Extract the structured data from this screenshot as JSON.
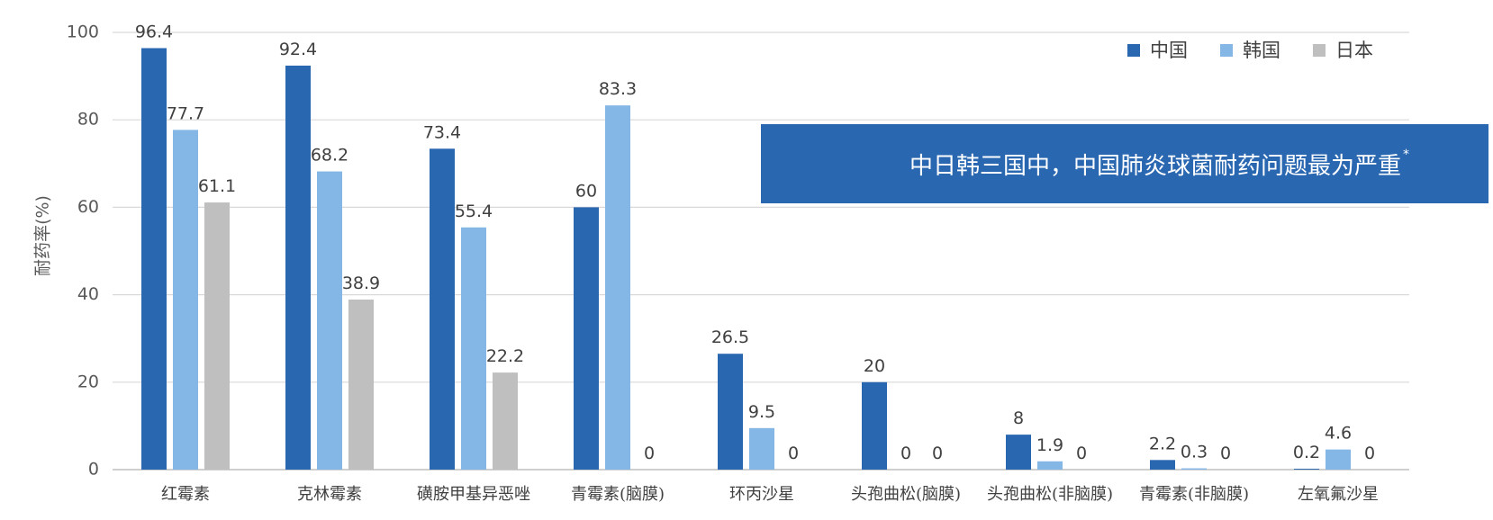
{
  "banner": {
    "text": "中日韩三国中，中国肺炎球菌耐药问题最为严重",
    "marker": "*"
  },
  "chart_data": {
    "type": "bar",
    "title": "",
    "xlabel": "",
    "ylabel": "耐药率(%)",
    "ylim": [
      0,
      100
    ],
    "yticks": [
      0,
      20,
      40,
      60,
      80,
      100
    ],
    "grid": true,
    "legend_position": "top-right",
    "categories": [
      "红霉素",
      "克林霉素",
      "磺胺甲基异恶唑",
      "青霉素(脑膜)",
      "环丙沙星",
      "头孢曲松(脑膜)",
      "头孢曲松(非脑膜)",
      "青霉素(非脑膜)",
      "左氧氟沙星"
    ],
    "series": [
      {
        "name": "中国",
        "color": "#2A67B1",
        "values": [
          96.4,
          92.4,
          73.4,
          60,
          26.5,
          20,
          8,
          2.2,
          0.2
        ]
      },
      {
        "name": "韩国",
        "color": "#84B7E5",
        "values": [
          77.7,
          68.2,
          55.4,
          83.3,
          9.5,
          0,
          1.9,
          0.3,
          4.6
        ]
      },
      {
        "name": "日本",
        "color": "#BFBFBF",
        "values": [
          61.1,
          38.9,
          22.2,
          0,
          0,
          0,
          0,
          0,
          0
        ]
      }
    ],
    "labels": [
      [
        "96.4",
        "92.4",
        "73.4",
        "60",
        "26.5",
        "20",
        "8",
        "2.2",
        "0.2"
      ],
      [
        "77.7",
        "68.2",
        "55.4",
        "83.3",
        "9.5",
        "0",
        "1.9",
        "0.3",
        "4.6"
      ],
      [
        "61.1",
        "38.9",
        "22.2",
        "0",
        "0",
        "0",
        "0",
        "0",
        "0"
      ]
    ]
  }
}
